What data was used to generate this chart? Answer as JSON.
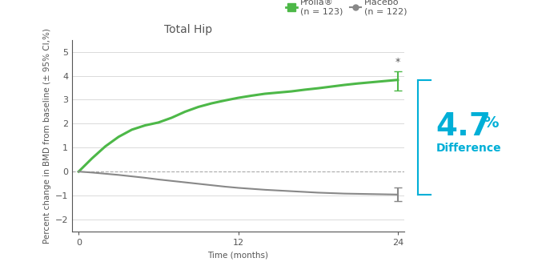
{
  "title": "Total Hip",
  "xlabel": "Time (months)",
  "ylabel": "Percent change in BMD from baseline (± 95% CI,%)",
  "prolia_label_line1": "Prolia®",
  "prolia_label_line2": "(n = 123)",
  "placebo_label_line1": "Placebo",
  "placebo_label_line2": "(n = 122)",
  "prolia_color": "#4db848",
  "placebo_color": "#888888",
  "prolia_x": [
    0,
    1,
    2,
    3,
    4,
    5,
    6,
    7,
    8,
    9,
    10,
    11,
    12,
    13,
    14,
    15,
    16,
    17,
    18,
    19,
    20,
    21,
    22,
    23,
    24
  ],
  "prolia_y": [
    0,
    0.55,
    1.05,
    1.45,
    1.75,
    1.93,
    2.05,
    2.25,
    2.5,
    2.7,
    2.85,
    2.97,
    3.08,
    3.17,
    3.25,
    3.3,
    3.35,
    3.42,
    3.48,
    3.55,
    3.62,
    3.68,
    3.73,
    3.78,
    3.83
  ],
  "placebo_x": [
    0,
    1,
    2,
    3,
    4,
    5,
    6,
    7,
    8,
    9,
    10,
    11,
    12,
    13,
    14,
    15,
    16,
    17,
    18,
    19,
    20,
    21,
    22,
    23,
    24
  ],
  "placebo_y": [
    0,
    -0.04,
    -0.09,
    -0.14,
    -0.2,
    -0.26,
    -0.33,
    -0.39,
    -0.45,
    -0.51,
    -0.57,
    -0.63,
    -0.68,
    -0.72,
    -0.76,
    -0.79,
    -0.82,
    -0.85,
    -0.88,
    -0.9,
    -0.92,
    -0.93,
    -0.94,
    -0.95,
    -0.96
  ],
  "prolia_eb_y": 3.83,
  "prolia_eb_low": 0.45,
  "prolia_eb_high": 0.35,
  "placebo_eb_y": -0.96,
  "placebo_eb_low": 0.28,
  "placebo_eb_high": 0.28,
  "ylim": [
    -2.5,
    5.5
  ],
  "yticks": [
    -2,
    -1,
    0,
    1,
    2,
    3,
    4,
    5
  ],
  "xticks": [
    0,
    12,
    24
  ],
  "bracket_color": "#00afd7",
  "diff_text_large": "4.7",
  "diff_text_small": "%",
  "diff_label": "Difference",
  "diff_color": "#00afd7",
  "title_color": "#555555",
  "axis_color": "#555555",
  "tick_color": "#555555",
  "grid_color": "#cccccc",
  "background_color": "#ffffff",
  "title_fontsize": 10,
  "label_fontsize": 7.5,
  "tick_fontsize": 8,
  "legend_fontsize": 8,
  "diff_large_fontsize": 28,
  "diff_small_fontsize": 14,
  "diff_label_fontsize": 10
}
